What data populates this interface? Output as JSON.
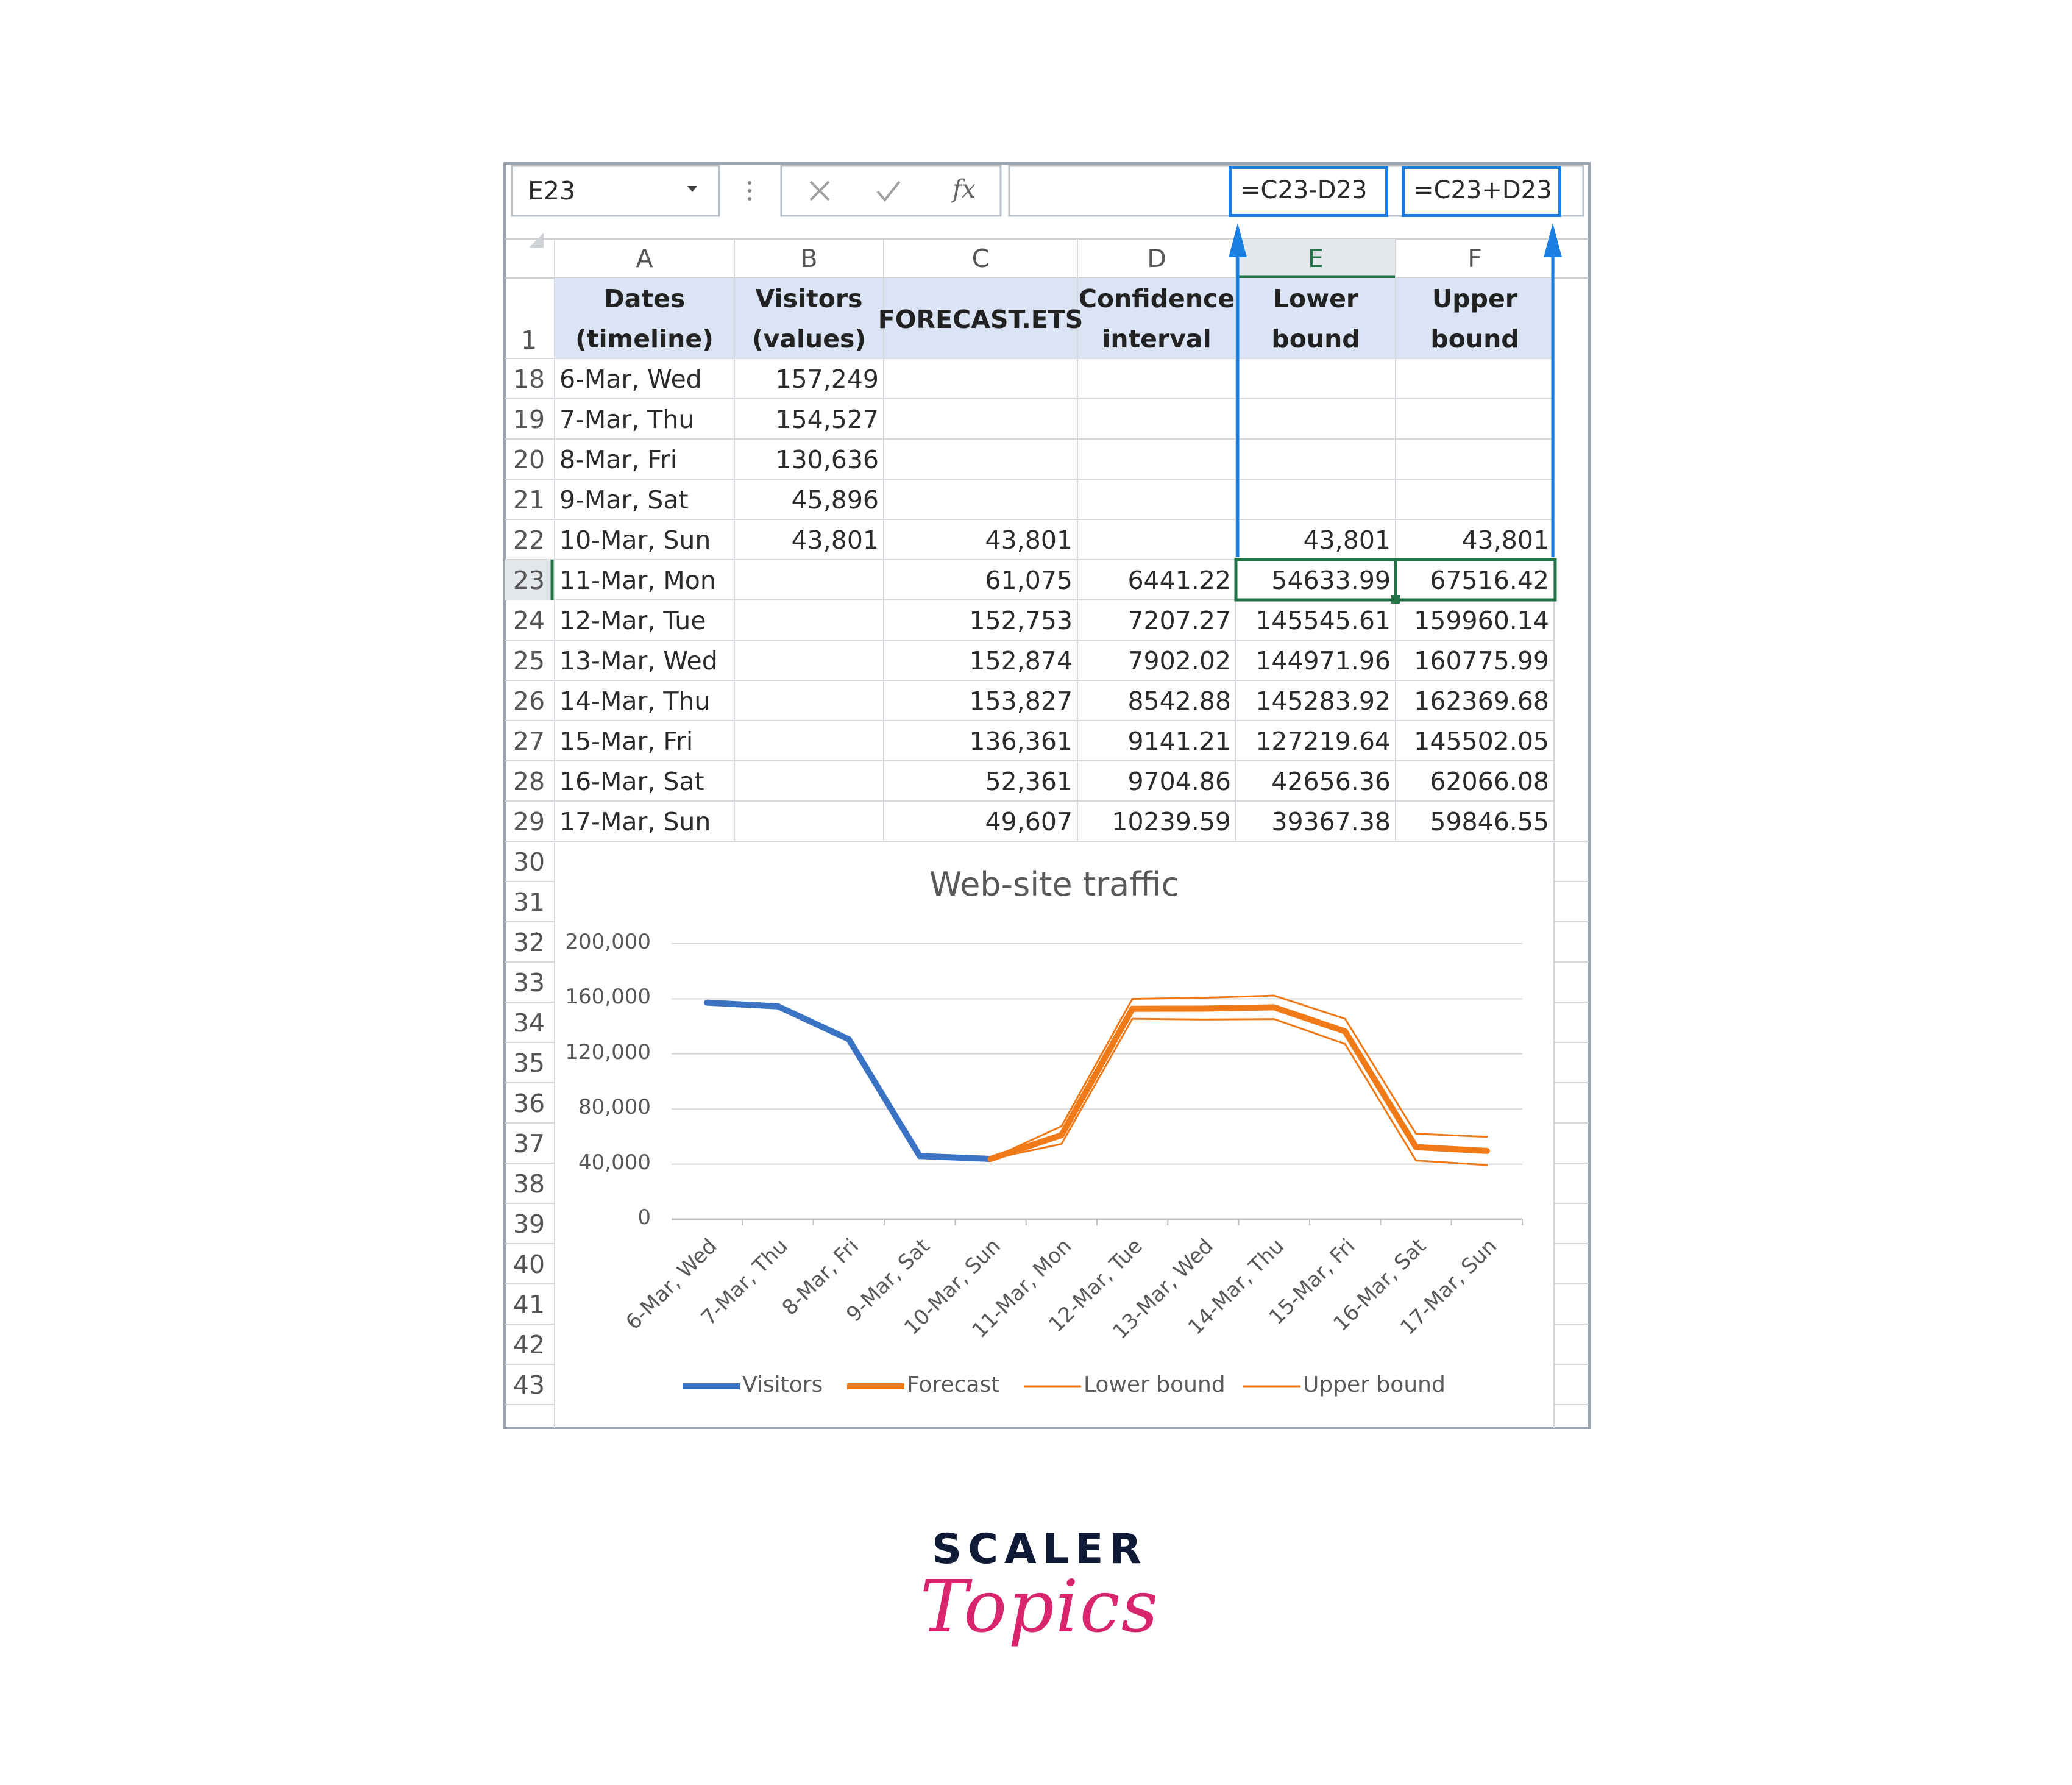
{
  "formula_bar": {
    "name_box": "E23",
    "cancel_icon": "x-icon",
    "enter_icon": "check-icon",
    "function_label": "fx",
    "formula_lower": "=C23-D23",
    "formula_upper": "=C23+D23"
  },
  "columns": [
    "A",
    "B",
    "C",
    "D",
    "E",
    "F"
  ],
  "header_row": {
    "row_number": "1",
    "cells": [
      [
        "Dates",
        "(timeline)"
      ],
      [
        "Visitors",
        "(values)"
      ],
      [
        "FORECAST.ETS"
      ],
      [
        "Confidence",
        "interval"
      ],
      [
        "Lower",
        "bound"
      ],
      [
        "Upper",
        "bound"
      ]
    ]
  },
  "rows": [
    {
      "n": "18",
      "a": "6-Mar, Wed",
      "b": "157,249",
      "c": "",
      "d": "",
      "e": "",
      "f": ""
    },
    {
      "n": "19",
      "a": "7-Mar, Thu",
      "b": "154,527",
      "c": "",
      "d": "",
      "e": "",
      "f": ""
    },
    {
      "n": "20",
      "a": "8-Mar, Fri",
      "b": "130,636",
      "c": "",
      "d": "",
      "e": "",
      "f": ""
    },
    {
      "n": "21",
      "a": "9-Mar, Sat",
      "b": "45,896",
      "c": "",
      "d": "",
      "e": "",
      "f": ""
    },
    {
      "n": "22",
      "a": "10-Mar, Sun",
      "b": "43,801",
      "c": "43,801",
      "d": "",
      "e": "43,801",
      "f": "43,801"
    },
    {
      "n": "23",
      "a": "11-Mar, Mon",
      "b": "",
      "c": "61,075",
      "d": "6441.22",
      "e": "54633.99",
      "f": "67516.42"
    },
    {
      "n": "24",
      "a": "12-Mar, Tue",
      "b": "",
      "c": "152,753",
      "d": "7207.27",
      "e": "145545.61",
      "f": "159960.14"
    },
    {
      "n": "25",
      "a": "13-Mar, Wed",
      "b": "",
      "c": "152,874",
      "d": "7902.02",
      "e": "144971.96",
      "f": "160775.99"
    },
    {
      "n": "26",
      "a": "14-Mar, Thu",
      "b": "",
      "c": "153,827",
      "d": "8542.88",
      "e": "145283.92",
      "f": "162369.68"
    },
    {
      "n": "27",
      "a": "15-Mar, Fri",
      "b": "",
      "c": "136,361",
      "d": "9141.21",
      "e": "127219.64",
      "f": "145502.05"
    },
    {
      "n": "28",
      "a": "16-Mar, Sat",
      "b": "",
      "c": "52,361",
      "d": "9704.86",
      "e": "42656.36",
      "f": "62066.08"
    },
    {
      "n": "29",
      "a": "17-Mar, Sun",
      "b": "",
      "c": "49,607",
      "d": "10239.59",
      "e": "39367.38",
      "f": "59846.55"
    }
  ],
  "chart_rows": [
    "30",
    "31",
    "32",
    "33",
    "34",
    "35",
    "36",
    "37",
    "38",
    "39",
    "40",
    "41",
    "42",
    "43"
  ],
  "chart_data": {
    "type": "line",
    "title": "Web-site traffic",
    "categories": [
      "6-Mar, Wed",
      "7-Mar, Thu",
      "8-Mar, Fri",
      "9-Mar, Sat",
      "10-Mar, Sun",
      "11-Mar, Mon",
      "12-Mar, Tue",
      "13-Mar, Wed",
      "14-Mar, Thu",
      "15-Mar, Fri",
      "16-Mar, Sat",
      "17-Mar, Sun"
    ],
    "y_ticks": [
      "0",
      "40,000",
      "80,000",
      "120,000",
      "160,000",
      "200,000"
    ],
    "ylim": [
      0,
      200000
    ],
    "grid": true,
    "legend_position": "bottom",
    "series": [
      {
        "name": "Visitors",
        "color": "#3a73c4",
        "width": "thick",
        "values": [
          157249,
          154527,
          130636,
          45896,
          43801,
          null,
          null,
          null,
          null,
          null,
          null,
          null
        ]
      },
      {
        "name": "Forecast",
        "color": "#f07a17",
        "width": "thick",
        "values": [
          null,
          null,
          null,
          null,
          43801,
          61075,
          152753,
          152874,
          153827,
          136361,
          52361,
          49607
        ]
      },
      {
        "name": "Lower bound",
        "color": "#f07a17",
        "width": "thin",
        "values": [
          null,
          null,
          null,
          null,
          43801,
          54633.99,
          145545.61,
          144971.96,
          145283.92,
          127219.64,
          42656.36,
          39367.38
        ]
      },
      {
        "name": "Upper bound",
        "color": "#f07a17",
        "width": "thin",
        "values": [
          null,
          null,
          null,
          null,
          43801,
          67516.42,
          159960.14,
          160775.99,
          162369.68,
          145502.05,
          62066.08,
          59846.55
        ]
      }
    ]
  },
  "logo": {
    "line1": "SCALER",
    "line2": "Topics"
  }
}
